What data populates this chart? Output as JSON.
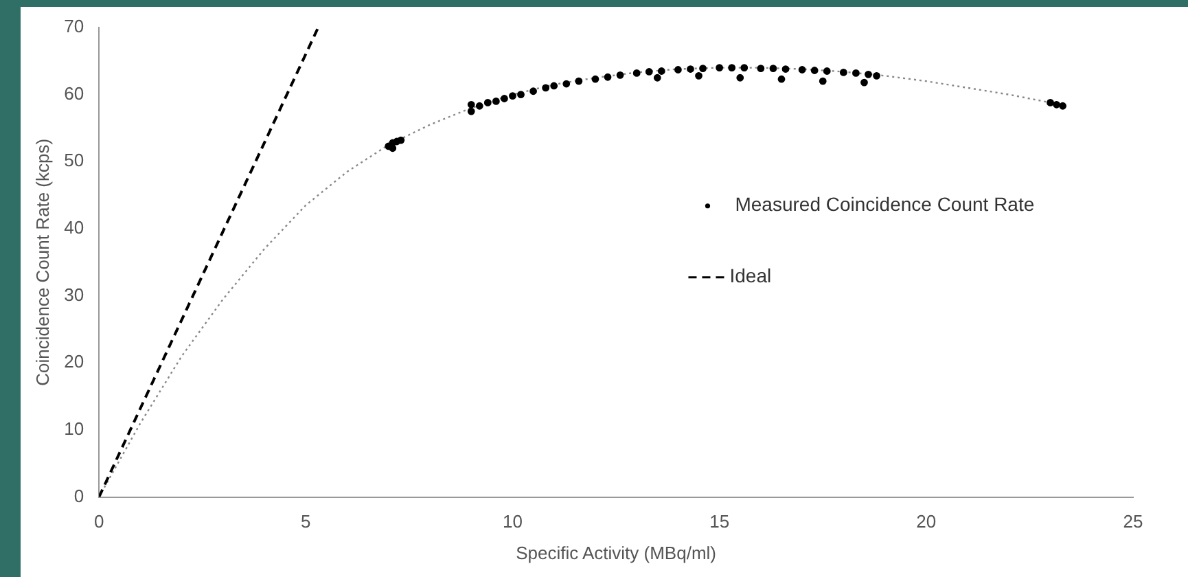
{
  "chart_data": {
    "type": "scatter",
    "xlabel": "Specific Activity (MBq/ml)",
    "ylabel": "Coincidence Count Rate (kcps)",
    "xlim": [
      0,
      25
    ],
    "xticks": [
      0,
      5,
      10,
      15,
      20,
      25
    ],
    "ylim": [
      0,
      70
    ],
    "yticks": [
      0,
      10,
      20,
      30,
      40,
      50,
      60,
      70
    ],
    "grid": false,
    "legend": "right",
    "series": [
      {
        "name": "Measured Coincidence Count Rate",
        "type": "scatter",
        "marker": "circle",
        "color": "#000000",
        "x": [
          7.0,
          7.1,
          7.2,
          7.3,
          7.1,
          9.0,
          9.0,
          9.2,
          9.4,
          9.6,
          9.8,
          10.0,
          10.2,
          10.5,
          10.8,
          11.0,
          11.3,
          11.6,
          12.0,
          12.3,
          12.6,
          13.0,
          13.3,
          13.6,
          14.0,
          14.3,
          14.6,
          15.0,
          15.3,
          15.6,
          16.0,
          16.3,
          16.6,
          17.0,
          17.3,
          17.6,
          18.0,
          18.3,
          18.6,
          18.8,
          13.5,
          14.5,
          15.5,
          16.5,
          17.5,
          18.5,
          23.0,
          23.15,
          23.3
        ],
        "values": [
          52.3,
          52.8,
          53.0,
          53.2,
          52.0,
          57.5,
          58.5,
          58.3,
          58.8,
          59.0,
          59.4,
          59.8,
          60.0,
          60.5,
          61.0,
          61.3,
          61.6,
          62.0,
          62.3,
          62.6,
          62.9,
          63.2,
          63.4,
          63.5,
          63.7,
          63.8,
          63.9,
          64.0,
          64.0,
          64.0,
          63.9,
          63.9,
          63.8,
          63.7,
          63.6,
          63.5,
          63.3,
          63.2,
          63.0,
          62.8,
          62.5,
          62.8,
          62.5,
          62.3,
          62.0,
          61.8,
          58.8,
          58.5,
          58.3
        ]
      },
      {
        "name": "Ideal",
        "type": "line",
        "color": "#000000",
        "line_style": "dashed",
        "marker": "none",
        "x": [
          0,
          5.3
        ],
        "values": [
          0,
          70
        ]
      },
      {
        "type": "line",
        "color": "#888888",
        "line_style": "dotted",
        "marker": "none",
        "x": [
          0,
          1,
          2,
          3,
          4,
          5,
          6,
          7,
          8,
          9,
          10,
          11,
          12,
          13,
          14,
          15,
          16,
          17,
          18,
          19,
          20,
          21,
          22,
          23
        ],
        "values": [
          0,
          11,
          21,
          29.5,
          37,
          43.5,
          48.5,
          52.5,
          55.5,
          58,
          60,
          61.5,
          62.5,
          63.3,
          63.8,
          64,
          64,
          63.8,
          63.4,
          62.8,
          62,
          61,
          60,
          58.8
        ]
      }
    ]
  }
}
